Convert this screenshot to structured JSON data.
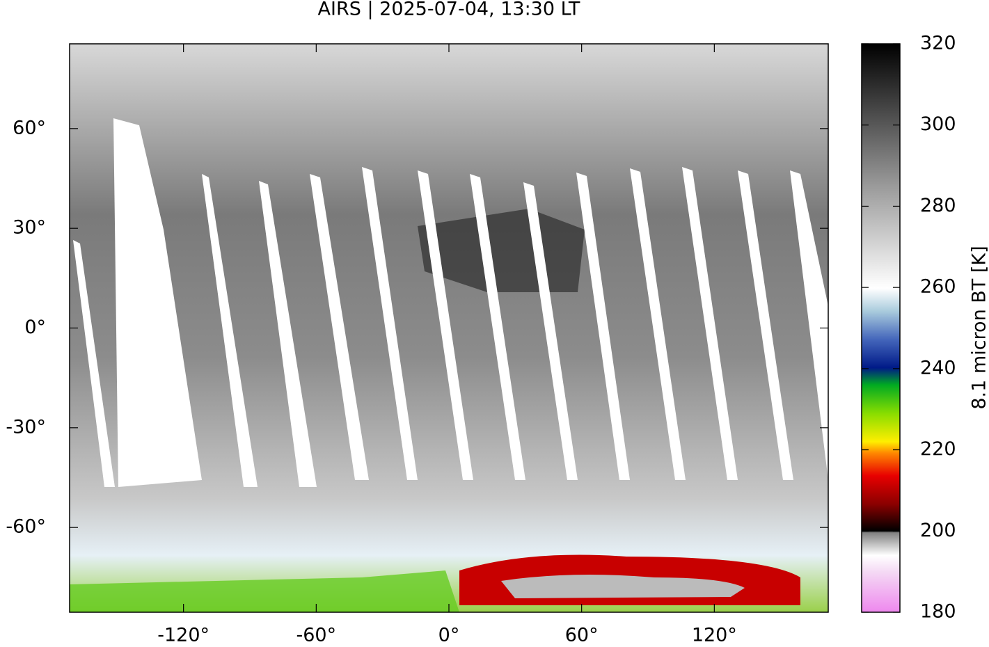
{
  "chart_data": {
    "type": "map",
    "title": "AIRS | 2025-07-04, 13:30 LT",
    "xlim": [
      -171.5,
      171.5
    ],
    "ylim": [
      -85.5,
      85.5
    ],
    "xticks": [
      {
        "value": -120,
        "label": "-120°"
      },
      {
        "value": -60,
        "label": "-60°"
      },
      {
        "value": 0,
        "label": "0°"
      },
      {
        "value": 60,
        "label": "60°"
      },
      {
        "value": 120,
        "label": "120°"
      }
    ],
    "yticks": [
      {
        "value": 60,
        "label": "60°"
      },
      {
        "value": 30,
        "label": "30°"
      },
      {
        "value": 0,
        "label": "0°"
      },
      {
        "value": -30,
        "label": "-30°"
      },
      {
        "value": -60,
        "label": "-60°"
      }
    ],
    "colorbar": {
      "label": "8.1 micron BT [K]",
      "lim": [
        180,
        320
      ],
      "ticks": [
        180,
        200,
        220,
        240,
        260,
        280,
        300,
        320
      ]
    }
  }
}
